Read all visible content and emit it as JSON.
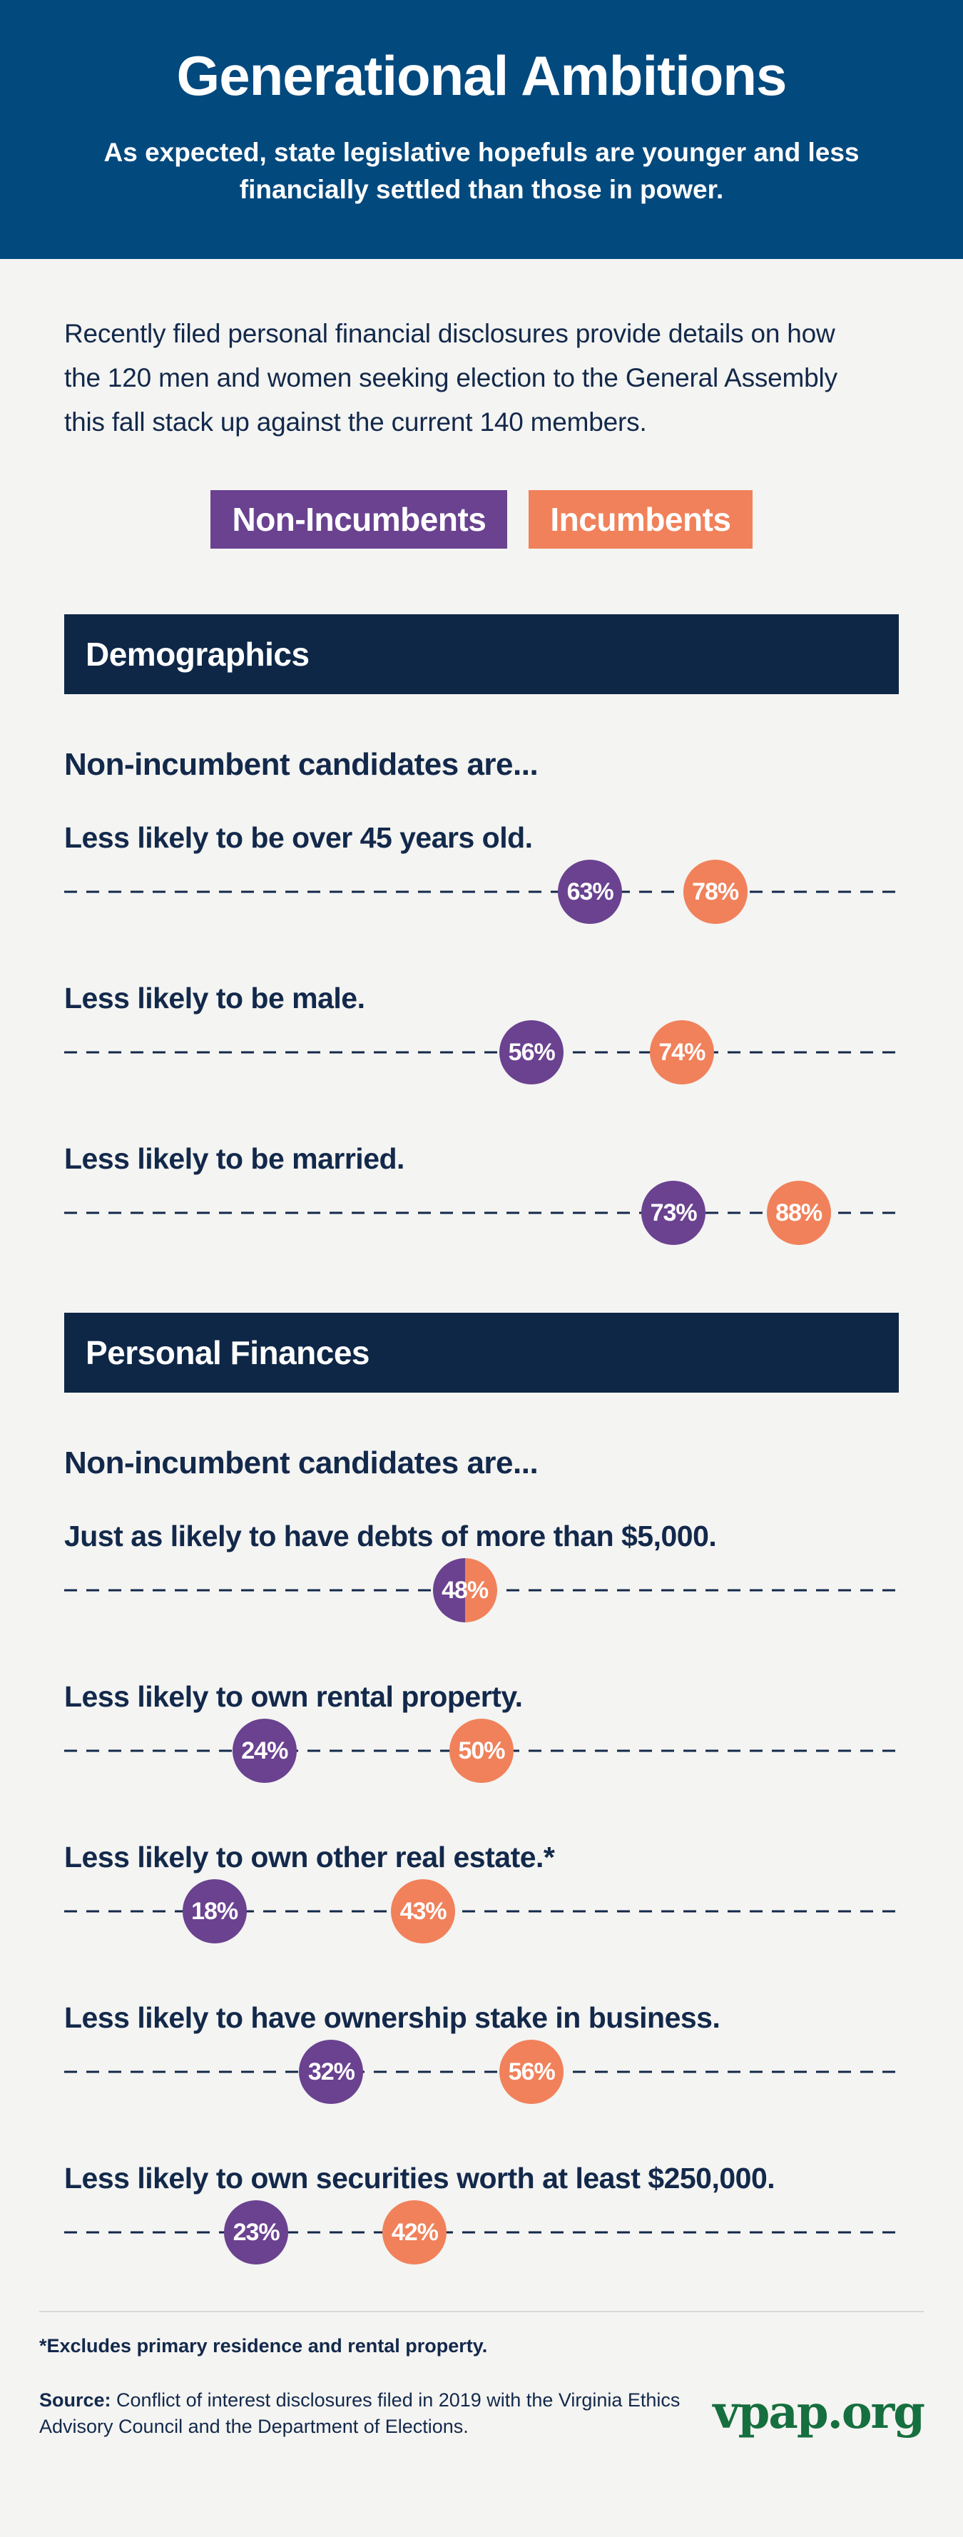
{
  "header": {
    "title": "Generational Ambitions",
    "subtitle": "As expected, state legislative hopefuls are younger and less financially settled than those in power.",
    "background": "#02497e"
  },
  "intro": "Recently filed personal financial disclosures provide details on how the 120 men and women seeking election to the General Assembly this fall stack up against the current 140 members.",
  "legend": {
    "items": [
      {
        "label": "Non-Incumbents",
        "color": "#6a4290"
      },
      {
        "label": "Incumbents",
        "color": "#f0815a"
      }
    ]
  },
  "sections": [
    {
      "title": "Demographics",
      "lead": "Non-incumbent candidates are...",
      "rows": [
        {
          "label": "Less likely to be over 45 years old.",
          "non_incumbent": 63,
          "incumbent": 78
        },
        {
          "label": "Less likely to be male.",
          "non_incumbent": 56,
          "incumbent": 74
        },
        {
          "label": "Less likely to be married.",
          "non_incumbent": 73,
          "incumbent": 88
        }
      ]
    },
    {
      "title": "Personal Finances",
      "lead": "Non-incumbent candidates are...",
      "rows": [
        {
          "label": "Just as likely to have debts of more than $5,000.",
          "non_incumbent": 48,
          "incumbent": 48,
          "overlap": true
        },
        {
          "label": "Less likely to own rental property.",
          "non_incumbent": 24,
          "incumbent": 50
        },
        {
          "label": "Less likely to own other real estate.*",
          "non_incumbent": 18,
          "incumbent": 43
        },
        {
          "label": "Less likely to have ownership stake in business.",
          "non_incumbent": 32,
          "incumbent": 56
        },
        {
          "label": "Less likely to own securities worth at least $250,000.",
          "non_incumbent": 23,
          "incumbent": 42
        }
      ]
    }
  ],
  "footer": {
    "footnote": "*Excludes primary residence and rental property.",
    "source_label": "Source:",
    "source_text": " Conflict of interest disclosures filed in 2019 with the Virginia Ethics Advisory Council and the Department of Elections.",
    "logo": "vpap.org",
    "logo_color": "#166f3e"
  },
  "colors": {
    "background": "#f4f4f2",
    "navy_text": "#13294b",
    "section_bar": "#0e2747",
    "non_incumbent_purple": "#6a4290",
    "incumbent_orange": "#f0815a",
    "divider": "#d9d9d7"
  },
  "chart_data": {
    "type": "scatter",
    "subtype": "dot-plot-on-dashed-axis",
    "unit": "%",
    "xlim": [
      0,
      100
    ],
    "grid": false,
    "legend_position": "top-center",
    "series_names": [
      "Non-Incumbents",
      "Incumbents"
    ],
    "categories": [
      "Less likely to be over 45 years old.",
      "Less likely to be male.",
      "Less likely to be married.",
      "Just as likely to have debts of more than $5,000.",
      "Less likely to own rental property.",
      "Less likely to own other real estate.*",
      "Less likely to have ownership stake in business.",
      "Less likely to own securities worth at least $250,000."
    ],
    "series": [
      {
        "name": "Non-Incumbents",
        "color": "#6a4290",
        "values": [
          63,
          56,
          73,
          48,
          24,
          18,
          32,
          23
        ]
      },
      {
        "name": "Incumbents",
        "color": "#f0815a",
        "values": [
          78,
          74,
          88,
          48,
          50,
          43,
          56,
          42
        ]
      }
    ],
    "section_of_category": [
      "Demographics",
      "Demographics",
      "Demographics",
      "Personal Finances",
      "Personal Finances",
      "Personal Finances",
      "Personal Finances",
      "Personal Finances"
    ],
    "title": "Generational Ambitions"
  }
}
